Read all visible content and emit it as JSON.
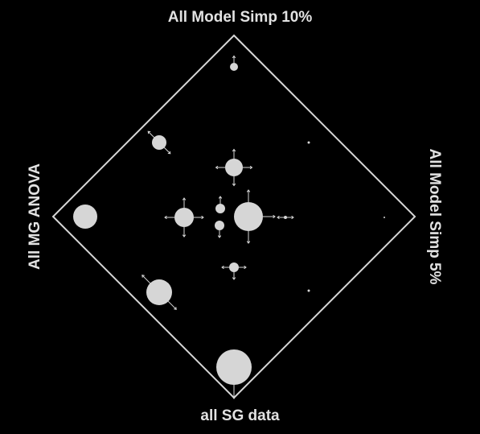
{
  "diagram": {
    "corners": {
      "top": "All Model Simp 10%",
      "right": "All Model Simp 5%",
      "bottom": "all SG data",
      "left": "All MG ANOVA"
    },
    "colors": {
      "background": "#000000",
      "frame": "#d8d8d8",
      "node": "#d6d6d6",
      "text": "#e2e2e2"
    }
  }
}
